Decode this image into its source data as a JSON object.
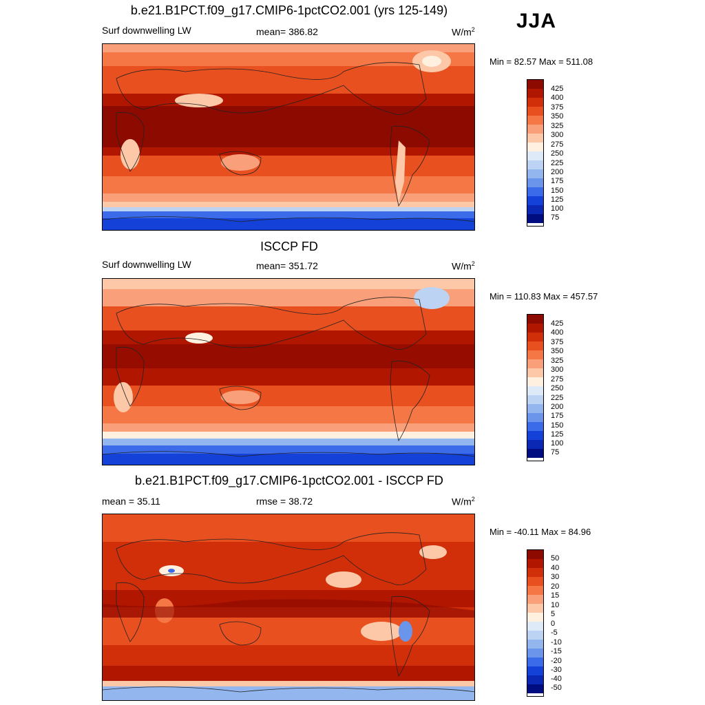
{
  "season": "JJA",
  "panel1": {
    "title": "b.e21.B1PCT.f09_g17.CMIP6-1pctCO2.001 (yrs 125-149)",
    "variable": "Surf downwelling LW",
    "stat": "mean= 386.82",
    "units": "W/m",
    "units_sup": "2",
    "minmax": "Min =  82.57 Max = 511.08"
  },
  "panel2": {
    "title": "ISCCP FD",
    "variable": "Surf downwelling LW",
    "stat": "mean= 351.72",
    "units": "W/m",
    "units_sup": "2",
    "minmax": "Min = 110.83 Max = 457.57"
  },
  "panel3": {
    "title": "b.e21.B1PCT.f09_g17.CMIP6-1pctCO2.001 - ISCCP FD",
    "stat_left": "mean =  35.11",
    "stat_mid": "rmse =  38.72",
    "units": "W/m",
    "units_sup": "2",
    "minmax": "Min = -40.11 Max =  84.96"
  },
  "colorbar_abs": {
    "levels": [
      "425",
      "400",
      "375",
      "350",
      "325",
      "300",
      "275",
      "250",
      "225",
      "200",
      "175",
      "150",
      "125",
      "100",
      "75"
    ],
    "colors": [
      "#8c0a00",
      "#b01600",
      "#d12e0a",
      "#e8501f",
      "#f57745",
      "#f9a07a",
      "#fcc8a8",
      "#fff0e0",
      "#dfeaf8",
      "#bdd3f3",
      "#93b6ee",
      "#6a95ea",
      "#3b6be8",
      "#1442d8",
      "#0a28b4",
      "#000d80"
    ]
  },
  "colorbar_diff": {
    "levels": [
      "50",
      "40",
      "30",
      "20",
      "15",
      "10",
      "5",
      "0",
      "-5",
      "-10",
      "-15",
      "-20",
      "-30",
      "-40",
      "-50"
    ],
    "colors": [
      "#8c0a00",
      "#b01600",
      "#d12e0a",
      "#e8501f",
      "#f57745",
      "#f9a07a",
      "#fcc8a8",
      "#fff0e0",
      "#dfeaf8",
      "#bdd3f3",
      "#93b6ee",
      "#6a95ea",
      "#3b6be8",
      "#1442d8",
      "#0a28b4",
      "#000d80"
    ]
  }
}
